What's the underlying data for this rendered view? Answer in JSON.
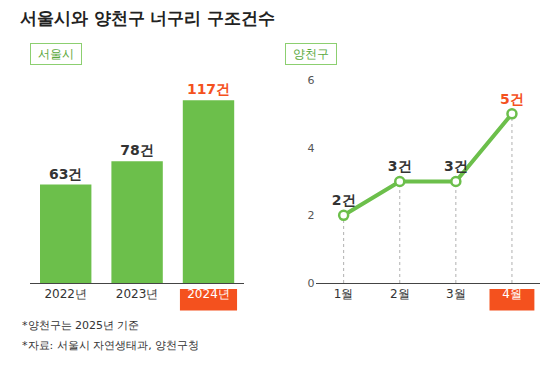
{
  "title": "서울시와 양천구 너구리 구조건수",
  "notes": [
    "*양천구는 2025년 기준",
    "*자료: 서울시 자연생태과, 양천구청"
  ],
  "chart_data": [
    {
      "type": "bar",
      "title": "서울시",
      "categories": [
        "2022년",
        "2023년",
        "2024년"
      ],
      "values": [
        63,
        78,
        117
      ],
      "value_labels": [
        "63건",
        "78건",
        "117건"
      ],
      "color": "#6cbf4b",
      "ylim": [
        0,
        130
      ],
      "grid": false,
      "data_labels": true,
      "tick_labels": "x"
    },
    {
      "type": "line",
      "title": "양천구",
      "categories": [
        "1월",
        "2월",
        "3월",
        "4월"
      ],
      "values": [
        2,
        3,
        3,
        5
      ],
      "value_labels": [
        "2건",
        "3건",
        "3건",
        "5건"
      ],
      "color": "#6cbf4b",
      "marker": "circle",
      "ylim": [
        0,
        6
      ],
      "yticks": [
        0,
        2,
        4,
        6
      ],
      "grid": false,
      "data_labels": true
    }
  ]
}
